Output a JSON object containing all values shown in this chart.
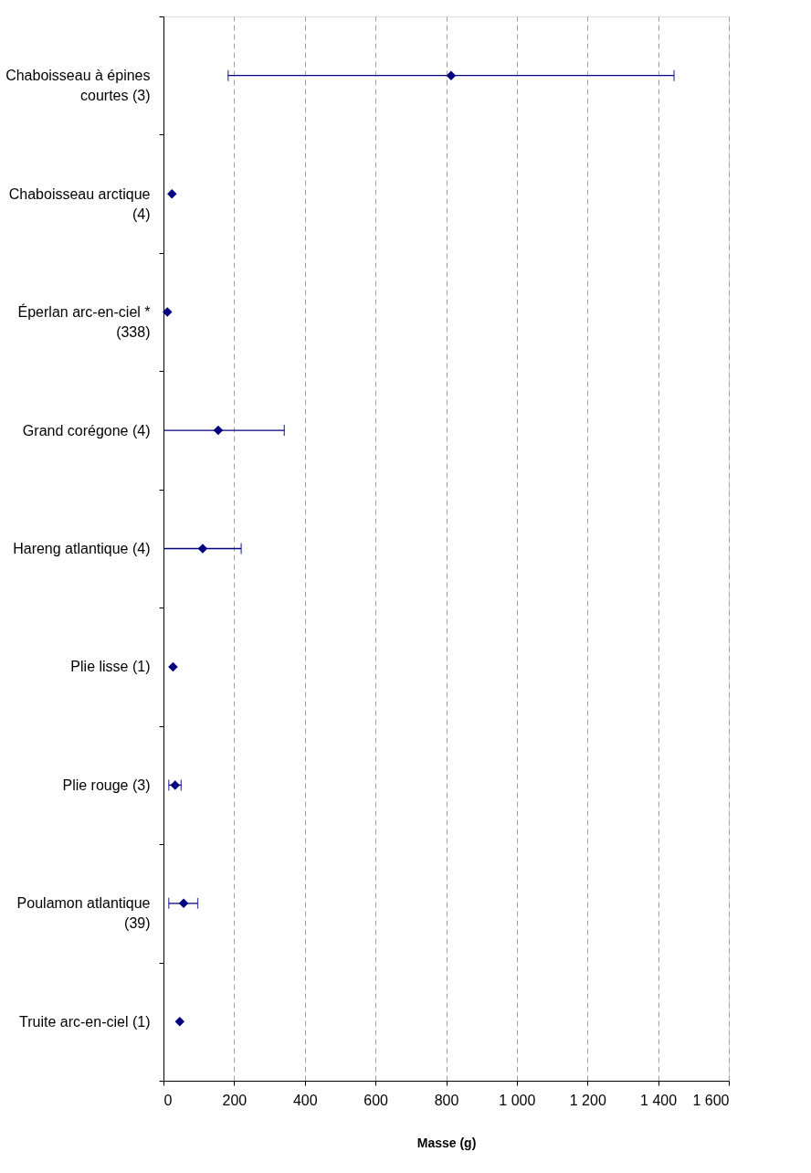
{
  "chart_data": {
    "type": "scatter",
    "orientation": "horizontal",
    "categories": [
      "Chaboisseau à épines\ncourtes (3)",
      "Chaboisseau arctique\n(4)",
      "Éperlan arc-en-ciel *\n(338)",
      "Grand corégone (4)",
      "Hareng atlantique (4)",
      "Plie lisse (1)",
      "Plie rouge (3)",
      "Poulamon atlantique\n(39)",
      "Truite arc-en-ciel (1)"
    ],
    "series": [
      {
        "color": "#000080",
        "values": [
          814,
          24,
          11,
          155,
          111,
          27,
          33,
          57,
          46
        ],
        "errors": [
          [
            183,
            1445
          ],
          null,
          null,
          [
            0,
            342
          ],
          [
            0,
            220
          ],
          null,
          [
            15,
            50
          ],
          [
            15,
            97
          ],
          null
        ]
      }
    ],
    "xlabel": "Masse (g)",
    "xlim": [
      0,
      1600
    ],
    "xticks": [
      0,
      200,
      400,
      600,
      800,
      {
        "value": 1000,
        "label": "1 000"
      },
      {
        "value": 1200,
        "label": "1 200"
      },
      {
        "value": 1400,
        "label": "1 400"
      },
      {
        "value": 1600,
        "label": "1 600"
      }
    ],
    "grid": "x",
    "marker": "diamond"
  }
}
